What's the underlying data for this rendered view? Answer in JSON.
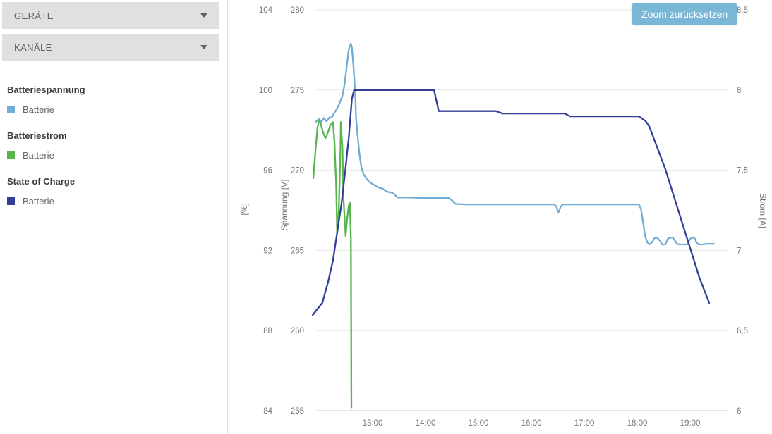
{
  "sidebar": {
    "dropdowns": [
      {
        "label": "GERÄTE"
      },
      {
        "label": "KANÄLE"
      }
    ],
    "legend_groups": [
      {
        "title": "Batteriespannung",
        "items": [
          {
            "label": "Batterie",
            "color": "#6fadd2"
          }
        ]
      },
      {
        "title": "Batteriestrom",
        "items": [
          {
            "label": "Batterie",
            "color": "#57b54e"
          }
        ]
      },
      {
        "title": "State of Charge",
        "items": [
          {
            "label": "Batterie",
            "color": "#333e96"
          }
        ]
      }
    ]
  },
  "toolbar": {
    "reset_zoom_label": "Zoom zurücksetzen",
    "button_color": "#7ab7d7"
  },
  "chart_data": {
    "type": "line",
    "grid": true,
    "x_axis": {
      "ticks": [
        {
          "t": 13,
          "label": "13:00"
        },
        {
          "t": 14,
          "label": "14:00"
        },
        {
          "t": 15,
          "label": "15:00"
        },
        {
          "t": 16,
          "label": "16:00"
        },
        {
          "t": 17,
          "label": "17:00"
        },
        {
          "t": 18,
          "label": "18:00"
        },
        {
          "t": 19,
          "label": "19:00"
        }
      ]
    },
    "y_axes": [
      {
        "id": "percent",
        "title": "[%]",
        "side": "left",
        "min": 84,
        "max": 104,
        "ticks": [
          {
            "v": 104,
            "label": "104"
          },
          {
            "v": 100,
            "label": "100"
          },
          {
            "v": 96,
            "label": "96"
          },
          {
            "v": 92,
            "label": "92"
          },
          {
            "v": 88,
            "label": "88"
          },
          {
            "v": 84,
            "label": "84"
          }
        ]
      },
      {
        "id": "spannung",
        "title": "Spannung [V]",
        "side": "left",
        "min": 255,
        "max": 280,
        "ticks": [
          {
            "v": 280,
            "label": "280"
          },
          {
            "v": 275,
            "label": "275"
          },
          {
            "v": 270,
            "label": "270"
          },
          {
            "v": 265,
            "label": "265"
          },
          {
            "v": 260,
            "label": "260"
          },
          {
            "v": 255,
            "label": "255"
          }
        ]
      },
      {
        "id": "strom",
        "title": "Strom [A]",
        "side": "right",
        "min": 6,
        "max": 8.5,
        "ticks": [
          {
            "v": 8.5,
            "label": "8,5"
          },
          {
            "v": 8,
            "label": "8"
          },
          {
            "v": 7.5,
            "label": "7,5"
          },
          {
            "v": 7,
            "label": "7"
          },
          {
            "v": 6.5,
            "label": "6,5"
          },
          {
            "v": 6,
            "label": "6"
          }
        ]
      }
    ],
    "series": [
      {
        "name": "Batteriespannung Batterie",
        "axis": "spannung",
        "color": "#6fadd2",
        "points": [
          [
            11.92,
            273.0
          ],
          [
            11.99,
            273.2
          ],
          [
            12.03,
            273.0
          ],
          [
            12.08,
            273.25
          ],
          [
            12.13,
            273.05
          ],
          [
            12.19,
            273.3
          ],
          [
            12.23,
            273.3
          ],
          [
            12.27,
            273.55
          ],
          [
            12.31,
            273.75
          ],
          [
            12.35,
            274.0
          ],
          [
            12.39,
            274.3
          ],
          [
            12.43,
            274.65
          ],
          [
            12.47,
            275.35
          ],
          [
            12.51,
            276.45
          ],
          [
            12.55,
            277.55
          ],
          [
            12.59,
            277.9
          ],
          [
            12.61,
            277.65
          ],
          [
            12.64,
            276.45
          ],
          [
            12.67,
            274.9
          ],
          [
            12.69,
            273.2
          ],
          [
            12.72,
            272.05
          ],
          [
            12.75,
            271.05
          ],
          [
            12.79,
            270.15
          ],
          [
            12.83,
            269.75
          ],
          [
            12.85,
            269.65
          ],
          [
            12.89,
            269.45
          ],
          [
            12.93,
            269.3
          ],
          [
            12.99,
            269.15
          ],
          [
            13.05,
            269.05
          ],
          [
            13.09,
            268.95
          ],
          [
            13.19,
            268.85
          ],
          [
            13.23,
            268.75
          ],
          [
            13.28,
            268.65
          ],
          [
            13.37,
            268.6
          ],
          [
            13.41,
            268.5
          ],
          [
            13.47,
            268.3
          ],
          [
            13.69,
            268.3
          ],
          [
            13.96,
            268.27
          ],
          [
            14.44,
            268.27
          ],
          [
            14.49,
            268.15
          ],
          [
            14.57,
            267.9
          ],
          [
            14.76,
            267.87
          ],
          [
            15.29,
            267.87
          ],
          [
            16.43,
            267.87
          ],
          [
            16.47,
            267.75
          ],
          [
            16.51,
            267.35
          ],
          [
            16.55,
            267.7
          ],
          [
            16.59,
            267.87
          ],
          [
            17.56,
            267.87
          ],
          [
            18.03,
            267.87
          ],
          [
            18.07,
            267.6
          ],
          [
            18.11,
            266.75
          ],
          [
            18.15,
            265.9
          ],
          [
            18.19,
            265.5
          ],
          [
            18.23,
            265.37
          ],
          [
            18.28,
            265.5
          ],
          [
            18.32,
            265.75
          ],
          [
            18.37,
            265.8
          ],
          [
            18.43,
            265.6
          ],
          [
            18.47,
            265.37
          ],
          [
            18.53,
            265.37
          ],
          [
            18.57,
            265.68
          ],
          [
            18.61,
            265.8
          ],
          [
            18.67,
            265.8
          ],
          [
            18.71,
            265.63
          ],
          [
            18.75,
            265.41
          ],
          [
            18.81,
            265.37
          ],
          [
            18.95,
            265.37
          ],
          [
            18.99,
            265.68
          ],
          [
            19.03,
            265.8
          ],
          [
            19.08,
            265.78
          ],
          [
            19.12,
            265.5
          ],
          [
            19.16,
            265.37
          ],
          [
            19.24,
            265.37
          ],
          [
            19.31,
            265.41
          ],
          [
            19.45,
            265.41
          ]
        ]
      },
      {
        "name": "Batteriestrom Batterie",
        "axis": "strom",
        "color": "#57b54e",
        "points": [
          [
            11.88,
            7.45
          ],
          [
            11.92,
            7.62
          ],
          [
            11.96,
            7.77
          ],
          [
            11.99,
            7.81
          ],
          [
            12.03,
            7.78
          ],
          [
            12.07,
            7.73
          ],
          [
            12.11,
            7.7
          ],
          [
            12.15,
            7.73
          ],
          [
            12.2,
            7.78
          ],
          [
            12.25,
            7.8
          ],
          [
            12.28,
            7.68
          ],
          [
            12.31,
            7.42
          ],
          [
            12.33,
            7.11
          ],
          [
            12.36,
            7.24
          ],
          [
            12.39,
            7.59
          ],
          [
            12.4,
            7.8
          ],
          [
            12.43,
            7.64
          ],
          [
            12.45,
            7.33
          ],
          [
            12.49,
            7.09
          ],
          [
            12.52,
            7.2
          ],
          [
            12.55,
            7.28
          ],
          [
            12.57,
            7.3
          ],
          [
            12.59,
            7.07
          ],
          [
            12.6,
            6.02
          ]
        ]
      },
      {
        "name": "State of Charge Batterie",
        "axis": "percent",
        "color": "#333e96",
        "points": [
          [
            11.87,
            88.78
          ],
          [
            12.05,
            89.38
          ],
          [
            12.16,
            90.43
          ],
          [
            12.25,
            91.49
          ],
          [
            12.33,
            92.89
          ],
          [
            12.41,
            94.3
          ],
          [
            12.48,
            95.88
          ],
          [
            12.55,
            97.64
          ],
          [
            12.61,
            99.57
          ],
          [
            12.65,
            100.0
          ],
          [
            14.16,
            100.0
          ],
          [
            14.25,
            98.95
          ],
          [
            15.33,
            98.95
          ],
          [
            15.45,
            98.83
          ],
          [
            16.63,
            98.83
          ],
          [
            16.73,
            98.69
          ],
          [
            18.03,
            98.69
          ],
          [
            18.16,
            98.45
          ],
          [
            18.23,
            98.17
          ],
          [
            18.53,
            96.06
          ],
          [
            19.17,
            90.68
          ],
          [
            19.36,
            89.38
          ]
        ]
      }
    ]
  }
}
